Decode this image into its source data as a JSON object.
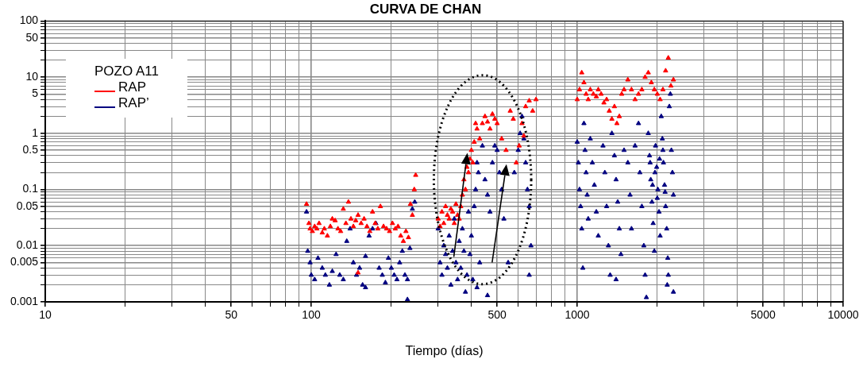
{
  "chart_data": {
    "type": "scatter",
    "title": "CURVA DE CHAN",
    "xlabel": "Tiempo (días)",
    "legend_title": "POZO A11",
    "legend": "top left",
    "grid": true,
    "marker": "triangle",
    "log": "xy",
    "xlim": [
      10,
      10000
    ],
    "ylim": [
      0.001,
      100
    ],
    "xticks": [
      10,
      {
        "value": 20,
        "label": null
      },
      {
        "value": 30,
        "label": null
      },
      {
        "value": 40,
        "label": null
      },
      50,
      {
        "value": 60,
        "label": null
      },
      {
        "value": 70,
        "label": null
      },
      {
        "value": 80,
        "label": null
      },
      {
        "value": 90,
        "label": null
      },
      100,
      {
        "value": 200,
        "label": null
      },
      {
        "value": 300,
        "label": null
      },
      {
        "value": 400,
        "label": null
      },
      500,
      {
        "value": 600,
        "label": null
      },
      {
        "value": 700,
        "label": null
      },
      {
        "value": 800,
        "label": null
      },
      {
        "value": 900,
        "label": null
      },
      1000,
      {
        "value": 2000,
        "label": null
      },
      {
        "value": 3000,
        "label": null
      },
      {
        "value": 4000,
        "label": null
      },
      5000,
      {
        "value": 6000,
        "label": null
      },
      {
        "value": 7000,
        "label": null
      },
      {
        "value": 8000,
        "label": null
      },
      {
        "value": 9000,
        "label": null
      },
      10000
    ],
    "yticks": [
      0.001,
      {
        "value": 0.002,
        "label": null
      },
      {
        "value": 0.003,
        "label": null
      },
      {
        "value": 0.004,
        "label": null
      },
      0.005,
      {
        "value": 0.006,
        "label": null
      },
      {
        "value": 0.007,
        "label": null
      },
      {
        "value": 0.008,
        "label": null
      },
      {
        "value": 0.009,
        "label": null
      },
      0.01,
      {
        "value": 0.02,
        "label": null
      },
      {
        "value": 0.03,
        "label": null
      },
      {
        "value": 0.04,
        "label": null
      },
      0.05,
      {
        "value": 0.06,
        "label": null
      },
      {
        "value": 0.07,
        "label": null
      },
      {
        "value": 0.08,
        "label": null
      },
      {
        "value": 0.09,
        "label": null
      },
      0.1,
      {
        "value": 0.2,
        "label": null
      },
      {
        "value": 0.3,
        "label": null
      },
      {
        "value": 0.4,
        "label": null
      },
      0.5,
      {
        "value": 0.6,
        "label": null
      },
      {
        "value": 0.7,
        "label": null
      },
      {
        "value": 0.8,
        "label": null
      },
      {
        "value": 0.9,
        "label": null
      },
      1,
      {
        "value": 2,
        "label": null
      },
      {
        "value": 3,
        "label": null
      },
      {
        "value": 4,
        "label": null
      },
      5,
      {
        "value": 6,
        "label": null
      },
      {
        "value": 7,
        "label": null
      },
      {
        "value": 8,
        "label": null
      },
      {
        "value": 9,
        "label": null
      },
      10,
      {
        "value": 20,
        "label": null
      },
      {
        "value": 30,
        "label": null
      },
      {
        "value": 40,
        "label": null
      },
      50,
      {
        "value": 60,
        "label": null
      },
      {
        "value": 70,
        "label": null
      },
      {
        "value": 80,
        "label": null
      },
      {
        "value": 90,
        "label": null
      },
      100
    ],
    "series": [
      {
        "name": "RAP",
        "color": "#ff0000",
        "x": [
          96,
          98,
          99,
          101,
          103,
          105,
          107,
          110,
          112,
          115,
          118,
          120,
          123,
          126,
          129,
          132,
          135,
          138,
          141,
          144,
          147,
          150,
          150,
          154,
          158,
          162,
          166,
          170,
          174,
          178,
          182,
          187,
          192,
          197,
          202,
          207,
          212,
          217,
          222,
          227,
          232,
          236,
          240,
          244,
          247,
          300,
          305,
          310,
          315,
          320,
          325,
          330,
          335,
          340,
          345,
          350,
          355,
          360,
          365,
          370,
          375,
          380,
          385,
          390,
          395,
          400,
          405,
          410,
          415,
          420,
          430,
          440,
          450,
          460,
          470,
          480,
          490,
          500,
          520,
          540,
          560,
          575,
          590,
          605,
          620,
          630,
          640,
          660,
          680,
          700,
          1000,
          1020,
          1040,
          1060,
          1080,
          1100,
          1120,
          1150,
          1180,
          1200,
          1230,
          1260,
          1290,
          1320,
          1350,
          1380,
          1410,
          1440,
          1470,
          1500,
          1550,
          1600,
          1650,
          1700,
          1750,
          1800,
          1850,
          1900,
          1950,
          2000,
          2050,
          2100,
          2150,
          2200,
          2250,
          2300
        ],
        "values": [
          0.055,
          0.025,
          0.02,
          0.018,
          0.022,
          0.02,
          0.025,
          0.017,
          0.02,
          0.015,
          0.022,
          0.03,
          0.028,
          0.02,
          0.018,
          0.045,
          0.025,
          0.06,
          0.03,
          0.022,
          0.028,
          0.035,
          0.0033,
          0.025,
          0.03,
          0.022,
          0.018,
          0.04,
          0.025,
          0.02,
          0.05,
          0.022,
          0.02,
          0.018,
          0.025,
          0.02,
          0.022,
          0.015,
          0.012,
          0.018,
          0.014,
          0.055,
          0.035,
          0.1,
          0.18,
          0.03,
          0.022,
          0.04,
          0.025,
          0.05,
          0.035,
          0.03,
          0.045,
          0.04,
          0.025,
          0.055,
          0.035,
          0.03,
          0.05,
          0.08,
          0.15,
          0.1,
          0.25,
          0.2,
          0.35,
          0.5,
          0.3,
          0.7,
          1.5,
          1.2,
          0.8,
          1.5,
          2,
          1.6,
          1.2,
          2.2,
          1.8,
          1.5,
          0.8,
          0.5,
          2.5,
          1.8,
          0.3,
          0.6,
          1.5,
          0.9,
          3,
          3.8,
          2.5,
          4,
          4,
          6,
          12,
          8,
          5,
          4,
          6,
          5,
          4.5,
          6,
          5,
          3.5,
          4,
          2.5,
          1.8,
          3,
          1.5,
          2,
          5,
          6,
          9,
          6,
          4,
          5,
          6,
          10,
          12,
          8,
          6,
          5,
          4,
          6,
          13,
          22,
          7,
          9
        ]
      },
      {
        "name": "RAP’",
        "color": "#000080",
        "x": [
          96,
          97,
          99,
          100,
          103,
          106,
          110,
          113,
          117,
          120,
          124,
          128,
          132,
          136,
          140,
          144,
          148,
          152,
          156,
          160,
          165,
          170,
          175,
          180,
          185,
          190,
          195,
          200,
          205,
          210,
          215,
          220,
          225,
          230,
          235,
          240,
          245,
          230,
          160,
          300,
          305,
          310,
          315,
          320,
          325,
          330,
          335,
          340,
          345,
          350,
          355,
          360,
          365,
          370,
          375,
          380,
          385,
          390,
          395,
          400,
          405,
          410,
          415,
          420,
          425,
          430,
          440,
          450,
          460,
          470,
          480,
          490,
          500,
          510,
          520,
          530,
          550,
          580,
          600,
          610,
          620,
          630,
          640,
          650,
          660,
          670,
          660,
          460,
          420,
          1000,
          1010,
          1020,
          1030,
          1040,
          1050,
          1060,
          1070,
          1080,
          1090,
          1100,
          1120,
          1140,
          1160,
          1180,
          1200,
          1250,
          1270,
          1290,
          1310,
          1330,
          1350,
          1380,
          1400,
          1420,
          1440,
          1460,
          1400,
          1500,
          1550,
          1580,
          1600,
          1650,
          1700,
          1720,
          1750,
          1780,
          1800,
          1820,
          1850,
          1870,
          1890,
          1910,
          1930,
          1950,
          1970,
          1990,
          2010,
          2030,
          2050,
          2070,
          2090,
          2110,
          2130,
          2150,
          2170,
          2190,
          2200,
          2220,
          2240,
          2260,
          2280,
          2300,
          2300,
          2180,
          1880,
          1920,
          1960,
          2000,
          2040,
          2100,
          2140
        ],
        "values": [
          0.04,
          0.008,
          0.005,
          0.003,
          0.0025,
          0.006,
          0.004,
          0.003,
          0.002,
          0.0035,
          0.007,
          0.003,
          0.0025,
          0.012,
          0.02,
          0.005,
          0.003,
          0.004,
          0.002,
          0.0065,
          0.015,
          0.02,
          0.025,
          0.004,
          0.003,
          0.0022,
          0.006,
          0.004,
          0.003,
          0.0025,
          0.005,
          0.008,
          0.003,
          0.0025,
          0.009,
          0.045,
          0.06,
          0.0011,
          0.0018,
          0.02,
          0.005,
          0.003,
          0.01,
          0.007,
          0.004,
          0.015,
          0.002,
          0.008,
          0.03,
          0.005,
          0.0025,
          0.012,
          0.004,
          0.02,
          0.008,
          0.0015,
          0.003,
          0.04,
          0.007,
          0.015,
          0.0025,
          0.05,
          0.1,
          0.3,
          0.2,
          0.005,
          0.6,
          0.15,
          0.08,
          0.04,
          0.3,
          0.6,
          0.5,
          0.2,
          0.1,
          0.03,
          0.005,
          0.2,
          0.5,
          1,
          2,
          0.8,
          0.3,
          0.1,
          0.05,
          0.01,
          0.003,
          0.0013,
          0.0018,
          0.7,
          0.3,
          0.1,
          0.05,
          0.02,
          0.004,
          1.5,
          0.5,
          0.2,
          0.08,
          0.03,
          0.8,
          0.3,
          0.12,
          0.04,
          0.015,
          0.6,
          0.2,
          0.05,
          0.01,
          0.003,
          1,
          0.4,
          0.15,
          0.06,
          0.02,
          0.007,
          0.0025,
          0.5,
          0.3,
          0.08,
          0.02,
          0.6,
          1.5,
          0.2,
          0.05,
          0.01,
          0.003,
          0.0012,
          1,
          0.4,
          0.15,
          0.06,
          0.025,
          0.008,
          0.6,
          0.25,
          0.1,
          0.04,
          0.015,
          2,
          0.8,
          0.3,
          0.12,
          0.05,
          0.02,
          0.006,
          0.003,
          3,
          5,
          0.5,
          0.2,
          0.08,
          0.0015,
          0.002,
          0.3,
          0.12,
          0.2,
          0.07,
          0.35,
          0.5,
          0.09
        ]
      }
    ]
  }
}
